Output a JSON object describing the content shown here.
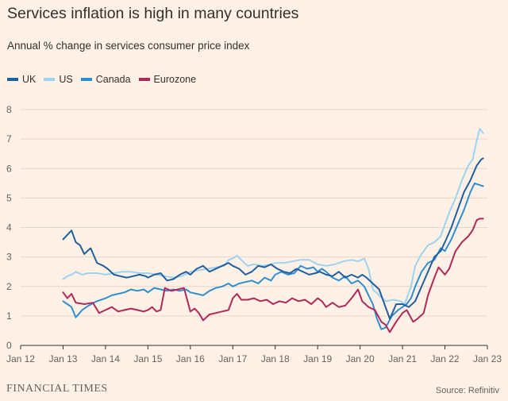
{
  "chart_data": {
    "type": "line",
    "title": "Services inflation is high in many countries",
    "subtitle": "Annual % change in services consumer price index",
    "xlabel": "",
    "ylabel": "",
    "xlim": [
      2012.0,
      2023.0
    ],
    "ylim": [
      0,
      8
    ],
    "y_ticks": [
      "0",
      "1",
      "2",
      "3",
      "4",
      "5",
      "6",
      "7",
      "8"
    ],
    "x_ticks": [
      {
        "label": "Jan 12",
        "x": 2012.0
      },
      {
        "label": "Jan 13",
        "x": 2013.0
      },
      {
        "label": "Jan 14",
        "x": 2014.0
      },
      {
        "label": "Jan 15",
        "x": 2015.0
      },
      {
        "label": "Jan 16",
        "x": 2016.0
      },
      {
        "label": "Jan 17",
        "x": 2017.0
      },
      {
        "label": "Jan 18",
        "x": 2018.0
      },
      {
        "label": "Jan 19",
        "x": 2019.0
      },
      {
        "label": "Jan 20",
        "x": 2020.0
      },
      {
        "label": "Jan 21",
        "x": 2021.0
      },
      {
        "label": "Jan 22",
        "x": 2022.0
      },
      {
        "label": "Jan 23",
        "x": 2023.0
      }
    ],
    "grid": true,
    "series": [
      {
        "name": "US",
        "color": "#9dd3f0",
        "points": [
          [
            2013.0,
            2.25
          ],
          [
            2013.1,
            2.35
          ],
          [
            2013.2,
            2.4
          ],
          [
            2013.3,
            2.5
          ],
          [
            2013.45,
            2.4
          ],
          [
            2013.6,
            2.45
          ],
          [
            2013.8,
            2.45
          ],
          [
            2014.0,
            2.4
          ],
          [
            2014.2,
            2.45
          ],
          [
            2014.4,
            2.5
          ],
          [
            2014.6,
            2.5
          ],
          [
            2014.8,
            2.45
          ],
          [
            2015.0,
            2.45
          ],
          [
            2015.2,
            2.4
          ],
          [
            2015.4,
            2.35
          ],
          [
            2015.6,
            2.3
          ],
          [
            2015.8,
            2.35
          ],
          [
            2016.0,
            2.5
          ],
          [
            2016.2,
            2.55
          ],
          [
            2016.4,
            2.6
          ],
          [
            2016.6,
            2.65
          ],
          [
            2016.8,
            2.7
          ],
          [
            2016.9,
            2.9
          ],
          [
            2017.0,
            2.95
          ],
          [
            2017.1,
            3.05
          ],
          [
            2017.2,
            2.9
          ],
          [
            2017.35,
            2.7
          ],
          [
            2017.5,
            2.75
          ],
          [
            2017.7,
            2.7
          ],
          [
            2017.9,
            2.75
          ],
          [
            2018.0,
            2.8
          ],
          [
            2018.2,
            2.8
          ],
          [
            2018.4,
            2.85
          ],
          [
            2018.6,
            2.9
          ],
          [
            2018.8,
            2.9
          ],
          [
            2019.0,
            2.75
          ],
          [
            2019.2,
            2.7
          ],
          [
            2019.4,
            2.75
          ],
          [
            2019.6,
            2.85
          ],
          [
            2019.8,
            2.9
          ],
          [
            2019.95,
            2.85
          ],
          [
            2020.1,
            2.95
          ],
          [
            2020.2,
            2.6
          ],
          [
            2020.3,
            1.9
          ],
          [
            2020.45,
            1.7
          ],
          [
            2020.6,
            1.5
          ],
          [
            2020.8,
            1.55
          ],
          [
            2020.95,
            1.5
          ],
          [
            2021.05,
            1.4
          ],
          [
            2021.2,
            2.0
          ],
          [
            2021.3,
            2.7
          ],
          [
            2021.45,
            3.1
          ],
          [
            2021.6,
            3.4
          ],
          [
            2021.75,
            3.5
          ],
          [
            2021.9,
            3.7
          ],
          [
            2022.0,
            4.1
          ],
          [
            2022.1,
            4.5
          ],
          [
            2022.25,
            5.0
          ],
          [
            2022.4,
            5.6
          ],
          [
            2022.55,
            6.1
          ],
          [
            2022.65,
            6.3
          ],
          [
            2022.75,
            6.95
          ],
          [
            2022.82,
            7.35
          ],
          [
            2022.9,
            7.2
          ]
        ]
      },
      {
        "name": "Canada",
        "color": "#2e8fd0",
        "points": [
          [
            2013.0,
            1.5
          ],
          [
            2013.1,
            1.4
          ],
          [
            2013.2,
            1.3
          ],
          [
            2013.3,
            0.95
          ],
          [
            2013.45,
            1.2
          ],
          [
            2013.6,
            1.35
          ],
          [
            2013.8,
            1.5
          ],
          [
            2014.0,
            1.6
          ],
          [
            2014.15,
            1.7
          ],
          [
            2014.3,
            1.75
          ],
          [
            2014.45,
            1.8
          ],
          [
            2014.6,
            1.9
          ],
          [
            2014.75,
            1.85
          ],
          [
            2014.9,
            1.9
          ],
          [
            2015.0,
            1.8
          ],
          [
            2015.15,
            1.95
          ],
          [
            2015.3,
            1.9
          ],
          [
            2015.45,
            1.85
          ],
          [
            2015.6,
            1.9
          ],
          [
            2015.75,
            1.85
          ],
          [
            2015.9,
            1.9
          ],
          [
            2016.0,
            1.8
          ],
          [
            2016.15,
            1.75
          ],
          [
            2016.3,
            1.7
          ],
          [
            2016.45,
            1.85
          ],
          [
            2016.6,
            1.95
          ],
          [
            2016.75,
            2.0
          ],
          [
            2016.9,
            2.1
          ],
          [
            2017.0,
            2.0
          ],
          [
            2017.15,
            2.1
          ],
          [
            2017.3,
            2.15
          ],
          [
            2017.45,
            2.2
          ],
          [
            2017.6,
            2.1
          ],
          [
            2017.75,
            2.3
          ],
          [
            2017.9,
            2.2
          ],
          [
            2018.0,
            2.4
          ],
          [
            2018.15,
            2.5
          ],
          [
            2018.3,
            2.4
          ],
          [
            2018.45,
            2.45
          ],
          [
            2018.6,
            2.7
          ],
          [
            2018.75,
            2.6
          ],
          [
            2018.9,
            2.65
          ],
          [
            2019.0,
            2.5
          ],
          [
            2019.1,
            2.6
          ],
          [
            2019.2,
            2.5
          ],
          [
            2019.35,
            2.3
          ],
          [
            2019.5,
            2.2
          ],
          [
            2019.65,
            2.35
          ],
          [
            2019.8,
            2.1
          ],
          [
            2019.95,
            2.2
          ],
          [
            2020.1,
            2.0
          ],
          [
            2020.2,
            1.7
          ],
          [
            2020.3,
            1.4
          ],
          [
            2020.4,
            0.9
          ],
          [
            2020.5,
            0.55
          ],
          [
            2020.6,
            0.6
          ],
          [
            2020.75,
            1.0
          ],
          [
            2020.9,
            1.2
          ],
          [
            2021.0,
            1.3
          ],
          [
            2021.1,
            1.4
          ],
          [
            2021.2,
            1.6
          ],
          [
            2021.3,
            2.0
          ],
          [
            2021.45,
            2.5
          ],
          [
            2021.6,
            2.8
          ],
          [
            2021.75,
            2.9
          ],
          [
            2021.9,
            3.3
          ],
          [
            2022.0,
            3.2
          ],
          [
            2022.15,
            3.6
          ],
          [
            2022.3,
            4.1
          ],
          [
            2022.45,
            4.6
          ],
          [
            2022.6,
            5.2
          ],
          [
            2022.7,
            5.5
          ],
          [
            2022.8,
            5.45
          ],
          [
            2022.9,
            5.4
          ]
        ]
      },
      {
        "name": "Eurozone",
        "color": "#b1275a",
        "points": [
          [
            2013.0,
            1.8
          ],
          [
            2013.1,
            1.6
          ],
          [
            2013.2,
            1.75
          ],
          [
            2013.3,
            1.45
          ],
          [
            2013.5,
            1.4
          ],
          [
            2013.7,
            1.45
          ],
          [
            2013.85,
            1.1
          ],
          [
            2014.0,
            1.2
          ],
          [
            2014.15,
            1.3
          ],
          [
            2014.3,
            1.15
          ],
          [
            2014.45,
            1.2
          ],
          [
            2014.6,
            1.25
          ],
          [
            2014.75,
            1.2
          ],
          [
            2014.9,
            1.15
          ],
          [
            2015.0,
            1.2
          ],
          [
            2015.1,
            1.3
          ],
          [
            2015.2,
            1.15
          ],
          [
            2015.3,
            1.2
          ],
          [
            2015.4,
            1.95
          ],
          [
            2015.55,
            1.85
          ],
          [
            2015.7,
            1.9
          ],
          [
            2015.85,
            1.95
          ],
          [
            2016.0,
            1.15
          ],
          [
            2016.1,
            1.25
          ],
          [
            2016.2,
            1.1
          ],
          [
            2016.3,
            0.85
          ],
          [
            2016.45,
            1.05
          ],
          [
            2016.6,
            1.1
          ],
          [
            2016.75,
            1.15
          ],
          [
            2016.9,
            1.2
          ],
          [
            2017.0,
            1.6
          ],
          [
            2017.1,
            1.75
          ],
          [
            2017.2,
            1.55
          ],
          [
            2017.35,
            1.55
          ],
          [
            2017.5,
            1.6
          ],
          [
            2017.65,
            1.5
          ],
          [
            2017.8,
            1.55
          ],
          [
            2017.95,
            1.4
          ],
          [
            2018.1,
            1.5
          ],
          [
            2018.25,
            1.45
          ],
          [
            2018.4,
            1.6
          ],
          [
            2018.55,
            1.5
          ],
          [
            2018.7,
            1.55
          ],
          [
            2018.85,
            1.4
          ],
          [
            2019.0,
            1.6
          ],
          [
            2019.1,
            1.5
          ],
          [
            2019.2,
            1.3
          ],
          [
            2019.35,
            1.45
          ],
          [
            2019.5,
            1.3
          ],
          [
            2019.65,
            1.35
          ],
          [
            2019.8,
            1.6
          ],
          [
            2019.95,
            1.9
          ],
          [
            2020.05,
            1.5
          ],
          [
            2020.2,
            1.3
          ],
          [
            2020.35,
            1.2
          ],
          [
            2020.5,
            0.8
          ],
          [
            2020.6,
            0.7
          ],
          [
            2020.7,
            0.45
          ],
          [
            2020.85,
            0.8
          ],
          [
            2021.0,
            1.1
          ],
          [
            2021.1,
            1.2
          ],
          [
            2021.25,
            0.8
          ],
          [
            2021.35,
            0.9
          ],
          [
            2021.5,
            1.1
          ],
          [
            2021.6,
            1.7
          ],
          [
            2021.75,
            2.3
          ],
          [
            2021.85,
            2.65
          ],
          [
            2022.0,
            2.4
          ],
          [
            2022.1,
            2.6
          ],
          [
            2022.25,
            3.2
          ],
          [
            2022.4,
            3.5
          ],
          [
            2022.55,
            3.7
          ],
          [
            2022.65,
            3.9
          ],
          [
            2022.75,
            4.25
          ],
          [
            2022.82,
            4.3
          ],
          [
            2022.9,
            4.3
          ]
        ]
      },
      {
        "name": "UK",
        "color": "#1f5fa0",
        "points": [
          [
            2013.0,
            3.6
          ],
          [
            2013.1,
            3.75
          ],
          [
            2013.2,
            3.9
          ],
          [
            2013.3,
            3.5
          ],
          [
            2013.4,
            3.4
          ],
          [
            2013.5,
            3.1
          ],
          [
            2013.65,
            3.3
          ],
          [
            2013.8,
            2.8
          ],
          [
            2013.95,
            2.7
          ],
          [
            2014.05,
            2.6
          ],
          [
            2014.2,
            2.4
          ],
          [
            2014.35,
            2.35
          ],
          [
            2014.5,
            2.3
          ],
          [
            2014.65,
            2.35
          ],
          [
            2014.8,
            2.4
          ],
          [
            2014.95,
            2.35
          ],
          [
            2015.0,
            2.3
          ],
          [
            2015.15,
            2.4
          ],
          [
            2015.3,
            2.45
          ],
          [
            2015.45,
            2.2
          ],
          [
            2015.6,
            2.25
          ],
          [
            2015.75,
            2.4
          ],
          [
            2015.9,
            2.5
          ],
          [
            2016.0,
            2.4
          ],
          [
            2016.15,
            2.6
          ],
          [
            2016.3,
            2.7
          ],
          [
            2016.45,
            2.5
          ],
          [
            2016.6,
            2.6
          ],
          [
            2016.75,
            2.7
          ],
          [
            2016.9,
            2.8
          ],
          [
            2017.0,
            2.7
          ],
          [
            2017.15,
            2.6
          ],
          [
            2017.3,
            2.4
          ],
          [
            2017.45,
            2.5
          ],
          [
            2017.6,
            2.7
          ],
          [
            2017.75,
            2.65
          ],
          [
            2017.9,
            2.75
          ],
          [
            2018.05,
            2.6
          ],
          [
            2018.2,
            2.5
          ],
          [
            2018.35,
            2.45
          ],
          [
            2018.5,
            2.6
          ],
          [
            2018.65,
            2.5
          ],
          [
            2018.8,
            2.4
          ],
          [
            2018.95,
            2.45
          ],
          [
            2019.05,
            2.5
          ],
          [
            2019.2,
            2.4
          ],
          [
            2019.35,
            2.35
          ],
          [
            2019.5,
            2.5
          ],
          [
            2019.65,
            2.3
          ],
          [
            2019.8,
            2.4
          ],
          [
            2019.95,
            2.3
          ],
          [
            2020.05,
            2.4
          ],
          [
            2020.15,
            2.3
          ],
          [
            2020.3,
            2.1
          ],
          [
            2020.45,
            1.9
          ],
          [
            2020.55,
            1.5
          ],
          [
            2020.7,
            0.9
          ],
          [
            2020.85,
            1.4
          ],
          [
            2021.0,
            1.4
          ],
          [
            2021.15,
            1.3
          ],
          [
            2021.3,
            1.5
          ],
          [
            2021.45,
            2.0
          ],
          [
            2021.6,
            2.5
          ],
          [
            2021.75,
            3.0
          ],
          [
            2021.9,
            3.2
          ],
          [
            2022.0,
            3.5
          ],
          [
            2022.15,
            4.0
          ],
          [
            2022.3,
            4.6
          ],
          [
            2022.45,
            5.2
          ],
          [
            2022.6,
            5.6
          ],
          [
            2022.75,
            6.1
          ],
          [
            2022.85,
            6.3
          ],
          [
            2022.9,
            6.35
          ]
        ]
      }
    ]
  },
  "legend_order": [
    "UK",
    "US",
    "Canada",
    "Eurozone"
  ],
  "footer": {
    "brand": "FINANCIAL TIMES",
    "source": "Source: Refinitiv"
  }
}
